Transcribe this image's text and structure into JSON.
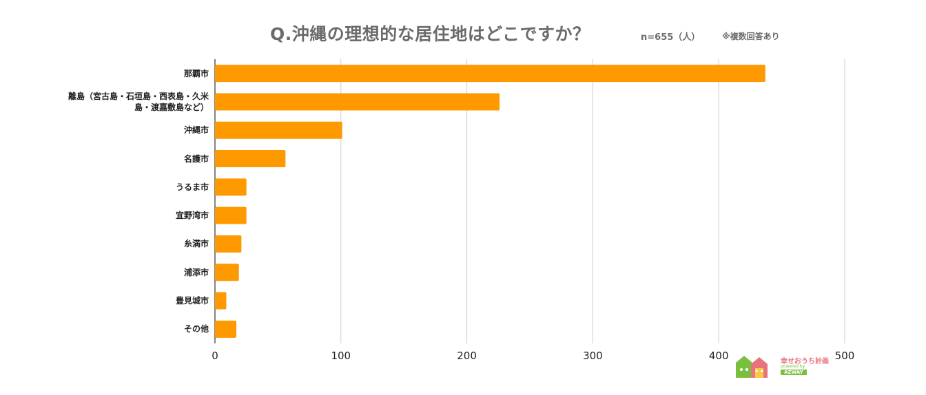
{
  "header": {
    "title": "Q.沖縄の理想的な居住地はどこですか？",
    "sample_size": "n=655（人）",
    "note": "※複数回答あり"
  },
  "chart_data": {
    "type": "bar",
    "orientation": "horizontal",
    "title": "Q.沖縄の理想的な居住地はどこですか？",
    "categories": [
      "那覇市",
      "離島（宮古島・石垣島・西表島・久米島・渡嘉敷島など）",
      "沖縄市",
      "名護市",
      "うるま市",
      "宜野湾市",
      "糸満市",
      "浦添市",
      "豊見城市",
      "その他"
    ],
    "category_lines": [
      [
        "那覇市"
      ],
      [
        "離島（宮古島・石垣島・西表島・久米",
        "島・渡嘉敷島など）"
      ],
      [
        "沖縄市"
      ],
      [
        "名護市"
      ],
      [
        "うるま市"
      ],
      [
        "宜野湾市"
      ],
      [
        "糸満市"
      ],
      [
        "浦添市"
      ],
      [
        "豊見城市"
      ],
      [
        "その他"
      ]
    ],
    "values": [
      437,
      226,
      101,
      56,
      25,
      25,
      21,
      19,
      9,
      17
    ],
    "xlim": [
      0,
      500
    ],
    "ticks": [
      0,
      100,
      200,
      300,
      400,
      500
    ],
    "tick_labels": [
      "0",
      "100",
      "200",
      "300",
      "400",
      "500"
    ],
    "xlabel": "",
    "ylabel": "",
    "bar_color": "#FF9900",
    "grid": "vertical"
  },
  "logo": {
    "line1": "幸せおうち計画",
    "line2": "powered by",
    "line3": "AZWAY",
    "color_pink": "#e8737d",
    "color_green": "#7bbf3f"
  }
}
